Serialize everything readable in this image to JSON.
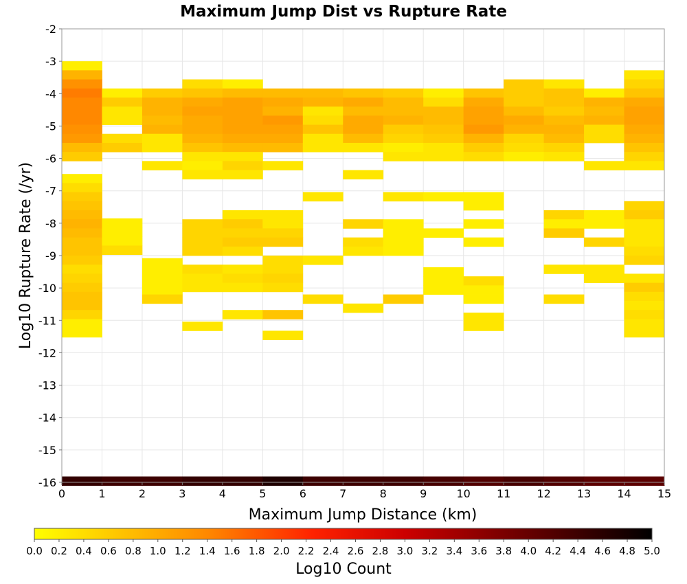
{
  "chart_data": {
    "type": "heatmap",
    "title": "Maximum Jump Dist vs Rupture Rate",
    "xlabel": "Maximum Jump Distance (km)",
    "ylabel": "Log10 Rupture Rate (/yr)",
    "xlim": [
      0,
      15
    ],
    "ylim": [
      -16,
      -2
    ],
    "x_ticks": [
      "0",
      "1",
      "2",
      "3",
      "4",
      "5",
      "6",
      "7",
      "8",
      "9",
      "10",
      "11",
      "12",
      "13",
      "14",
      "15"
    ],
    "y_ticks": [
      "-2",
      "-3",
      "-4",
      "-5",
      "-6",
      "-7",
      "-8",
      "-9",
      "-10",
      "-11",
      "-12",
      "-13",
      "-14",
      "-15",
      "-16"
    ],
    "grid": true,
    "cell_width_km": 1,
    "cell_height_log": 0.28,
    "colorbar": {
      "label": "Log10 Count",
      "min": 0.0,
      "max": 5.0,
      "ticks": [
        "0.0",
        "0.2",
        "0.4",
        "0.6",
        "0.8",
        "1.0",
        "1.2",
        "1.4",
        "1.6",
        "1.8",
        "2.0",
        "2.2",
        "2.4",
        "2.6",
        "2.8",
        "3.0",
        "3.2",
        "3.4",
        "3.6",
        "3.8",
        "4.0",
        "4.2",
        "4.4",
        "4.6",
        "4.8",
        "5.0"
      ],
      "colors": [
        "#ffff00",
        "#ff9900",
        "#ff2200",
        "#cc0000",
        "#660000",
        "#000000"
      ]
    },
    "cells": [
      [
        0,
        -3.14,
        0.2
      ],
      [
        0,
        -3.42,
        0.9
      ],
      [
        0,
        -3.7,
        1.3
      ],
      [
        0,
        -3.98,
        1.5
      ],
      [
        0,
        -4.26,
        1.4
      ],
      [
        0,
        -4.54,
        1.4
      ],
      [
        0,
        -4.82,
        1.4
      ],
      [
        0,
        -5.1,
        1.3
      ],
      [
        0,
        -5.38,
        1.2
      ],
      [
        0,
        -5.66,
        0.8
      ],
      [
        0,
        -5.94,
        0.6
      ],
      [
        0,
        -6.62,
        0.2
      ],
      [
        0,
        -6.9,
        0.4
      ],
      [
        0,
        -7.18,
        0.6
      ],
      [
        0,
        -7.46,
        0.7
      ],
      [
        0,
        -7.74,
        0.8
      ],
      [
        0,
        -8.02,
        0.9
      ],
      [
        0,
        -8.3,
        0.8
      ],
      [
        0,
        -8.58,
        0.7
      ],
      [
        0,
        -8.86,
        0.7
      ],
      [
        0,
        -9.14,
        0.6
      ],
      [
        0,
        -9.42,
        0.4
      ],
      [
        0,
        -9.7,
        0.5
      ],
      [
        0,
        -9.98,
        0.6
      ],
      [
        0,
        -10.26,
        0.7
      ],
      [
        0,
        -10.54,
        0.7
      ],
      [
        0,
        -10.82,
        0.5
      ],
      [
        0,
        -11.1,
        0.2
      ],
      [
        0,
        -11.38,
        0.2
      ],
      [
        1,
        -3.98,
        0.2
      ],
      [
        1,
        -4.26,
        0.6
      ],
      [
        1,
        -4.54,
        0.3
      ],
      [
        1,
        -4.82,
        0.3
      ],
      [
        1,
        -5.38,
        0.4
      ],
      [
        1,
        -5.66,
        0.6
      ],
      [
        1,
        -7.99,
        0.2
      ],
      [
        1,
        -8.27,
        0.2
      ],
      [
        1,
        -8.55,
        0.2
      ],
      [
        1,
        -8.83,
        0.4
      ],
      [
        2,
        -3.98,
        0.6
      ],
      [
        2,
        -4.26,
        0.9
      ],
      [
        2,
        -4.54,
        0.9
      ],
      [
        2,
        -4.82,
        0.8
      ],
      [
        2,
        -5.1,
        0.9
      ],
      [
        2,
        -5.38,
        0.3
      ],
      [
        2,
        -5.66,
        0.3
      ],
      [
        2,
        -6.22,
        0.3
      ],
      [
        2,
        -9.22,
        0.2
      ],
      [
        2,
        -9.5,
        0.2
      ],
      [
        2,
        -9.78,
        0.2
      ],
      [
        2,
        -10.06,
        0.2
      ],
      [
        2,
        -10.34,
        0.5
      ],
      [
        3,
        -3.7,
        0.4
      ],
      [
        3,
        -3.98,
        0.7
      ],
      [
        3,
        -4.26,
        1.0
      ],
      [
        3,
        -4.54,
        1.1
      ],
      [
        3,
        -4.82,
        1.0
      ],
      [
        3,
        -5.1,
        1.0
      ],
      [
        3,
        -5.38,
        0.9
      ],
      [
        3,
        -5.66,
        0.7
      ],
      [
        3,
        -5.94,
        0.3
      ],
      [
        3,
        -6.22,
        0.2
      ],
      [
        3,
        -6.5,
        0.3
      ],
      [
        3,
        -8.02,
        0.5
      ],
      [
        3,
        -8.3,
        0.5
      ],
      [
        3,
        -8.58,
        0.5
      ],
      [
        3,
        -8.86,
        0.5
      ],
      [
        3,
        -9.42,
        0.4
      ],
      [
        3,
        -9.7,
        0.3
      ],
      [
        3,
        -9.98,
        0.3
      ],
      [
        3,
        -11.18,
        0.3
      ],
      [
        4,
        -3.7,
        0.2
      ],
      [
        4,
        -3.98,
        0.8
      ],
      [
        4,
        -4.26,
        1.1
      ],
      [
        4,
        -4.54,
        1.1
      ],
      [
        4,
        -4.82,
        1.1
      ],
      [
        4,
        -5.1,
        1.1
      ],
      [
        4,
        -5.38,
        1.0
      ],
      [
        4,
        -5.66,
        0.8
      ],
      [
        4,
        -5.94,
        0.3
      ],
      [
        4,
        -6.22,
        0.5
      ],
      [
        4,
        -6.5,
        0.3
      ],
      [
        4,
        -7.74,
        0.3
      ],
      [
        4,
        -8.02,
        0.6
      ],
      [
        4,
        -8.3,
        0.5
      ],
      [
        4,
        -8.58,
        0.6
      ],
      [
        4,
        -8.86,
        0.4
      ],
      [
        4,
        -9.42,
        0.3
      ],
      [
        4,
        -9.7,
        0.4
      ],
      [
        4,
        -9.98,
        0.3
      ],
      [
        4,
        -10.82,
        0.3
      ],
      [
        5,
        -3.98,
        0.8
      ],
      [
        5,
        -4.26,
        1.0
      ],
      [
        5,
        -4.54,
        0.9
      ],
      [
        5,
        -4.82,
        1.2
      ],
      [
        5,
        -5.1,
        1.1
      ],
      [
        5,
        -5.38,
        1.0
      ],
      [
        5,
        -5.66,
        0.8
      ],
      [
        5,
        -6.22,
        0.3
      ],
      [
        5,
        -7.74,
        0.3
      ],
      [
        5,
        -8.02,
        0.3
      ],
      [
        5,
        -8.3,
        0.5
      ],
      [
        5,
        -8.58,
        0.6
      ],
      [
        5,
        -9.14,
        0.4
      ],
      [
        5,
        -9.42,
        0.4
      ],
      [
        5,
        -9.7,
        0.5
      ],
      [
        5,
        -9.98,
        0.4
      ],
      [
        5,
        -10.82,
        0.7
      ],
      [
        5,
        -11.46,
        0.3
      ],
      [
        6,
        -3.98,
        0.8
      ],
      [
        6,
        -4.26,
        0.9
      ],
      [
        6,
        -4.54,
        0.3
      ],
      [
        6,
        -4.82,
        0.4
      ],
      [
        6,
        -5.1,
        0.7
      ],
      [
        6,
        -5.38,
        0.3
      ],
      [
        6,
        -5.66,
        0.3
      ],
      [
        6,
        -7.18,
        0.3
      ],
      [
        6,
        -9.14,
        0.3
      ],
      [
        6,
        -10.34,
        0.4
      ],
      [
        7,
        -3.98,
        0.7
      ],
      [
        7,
        -4.26,
        1.0
      ],
      [
        7,
        -4.54,
        0.8
      ],
      [
        7,
        -4.82,
        1.0
      ],
      [
        7,
        -5.1,
        1.0
      ],
      [
        7,
        -5.38,
        0.8
      ],
      [
        7,
        -5.66,
        0.3
      ],
      [
        7,
        -6.5,
        0.3
      ],
      [
        7,
        -8.02,
        0.5
      ],
      [
        7,
        -8.58,
        0.4
      ],
      [
        7,
        -8.86,
        0.3
      ],
      [
        7,
        -10.62,
        0.3
      ],
      [
        8,
        -3.98,
        0.6
      ],
      [
        8,
        -4.26,
        0.8
      ],
      [
        8,
        -4.54,
        0.8
      ],
      [
        8,
        -4.82,
        0.9
      ],
      [
        8,
        -5.1,
        0.6
      ],
      [
        8,
        -5.38,
        0.5
      ],
      [
        8,
        -5.66,
        0.2
      ],
      [
        8,
        -5.94,
        0.3
      ],
      [
        8,
        -7.18,
        0.3
      ],
      [
        8,
        -8.02,
        0.2
      ],
      [
        8,
        -8.3,
        0.2
      ],
      [
        8,
        -8.58,
        0.2
      ],
      [
        8,
        -8.86,
        0.2
      ],
      [
        8,
        -10.34,
        0.6
      ],
      [
        9,
        -3.98,
        0.2
      ],
      [
        9,
        -4.26,
        0.4
      ],
      [
        9,
        -4.54,
        0.8
      ],
      [
        9,
        -4.82,
        0.8
      ],
      [
        9,
        -5.1,
        0.7
      ],
      [
        9,
        -5.38,
        0.6
      ],
      [
        9,
        -5.66,
        0.3
      ],
      [
        9,
        -5.94,
        0.3
      ],
      [
        9,
        -7.18,
        0.2
      ],
      [
        9,
        -8.3,
        0.2
      ],
      [
        9,
        -9.5,
        0.2
      ],
      [
        9,
        -9.78,
        0.2
      ],
      [
        9,
        -10.06,
        0.2
      ],
      [
        10,
        -3.98,
        0.7
      ],
      [
        10,
        -4.26,
        1.0
      ],
      [
        10,
        -4.54,
        1.1
      ],
      [
        10,
        -4.82,
        1.1
      ],
      [
        10,
        -5.1,
        1.2
      ],
      [
        10,
        -5.38,
        0.9
      ],
      [
        10,
        -5.66,
        0.6
      ],
      [
        10,
        -5.94,
        0.4
      ],
      [
        10,
        -7.18,
        0.2
      ],
      [
        10,
        -7.46,
        0.2
      ],
      [
        10,
        -8.02,
        0.2
      ],
      [
        10,
        -8.58,
        0.2
      ],
      [
        10,
        -9.78,
        0.4
      ],
      [
        10,
        -10.06,
        0.2
      ],
      [
        10,
        -10.34,
        0.2
      ],
      [
        10,
        -10.9,
        0.3
      ],
      [
        10,
        -11.18,
        0.3
      ],
      [
        11,
        -3.7,
        0.6
      ],
      [
        11,
        -3.98,
        0.6
      ],
      [
        11,
        -4.26,
        0.6
      ],
      [
        11,
        -4.54,
        0.8
      ],
      [
        11,
        -4.82,
        1.0
      ],
      [
        11,
        -5.1,
        0.9
      ],
      [
        11,
        -5.38,
        0.5
      ],
      [
        11,
        -5.66,
        0.4
      ],
      [
        11,
        -5.94,
        0.2
      ],
      [
        12,
        -3.7,
        0.3
      ],
      [
        12,
        -3.98,
        0.7
      ],
      [
        12,
        -4.26,
        0.7
      ],
      [
        12,
        -4.54,
        0.6
      ],
      [
        12,
        -4.82,
        0.8
      ],
      [
        12,
        -5.1,
        0.9
      ],
      [
        12,
        -5.38,
        0.8
      ],
      [
        12,
        -5.66,
        0.5
      ],
      [
        12,
        -5.94,
        0.3
      ],
      [
        12,
        -7.74,
        0.5
      ],
      [
        12,
        -8.02,
        0.2
      ],
      [
        12,
        -8.3,
        0.6
      ],
      [
        12,
        -9.42,
        0.3
      ],
      [
        12,
        -10.34,
        0.4
      ],
      [
        13,
        -3.98,
        0.2
      ],
      [
        13,
        -4.26,
        0.9
      ],
      [
        13,
        -4.54,
        0.8
      ],
      [
        13,
        -4.82,
        0.9
      ],
      [
        13,
        -5.1,
        0.4
      ],
      [
        13,
        -5.38,
        0.4
      ],
      [
        13,
        -6.22,
        0.3
      ],
      [
        13,
        -7.74,
        0.2
      ],
      [
        13,
        -8.02,
        0.2
      ],
      [
        13,
        -8.58,
        0.5
      ],
      [
        13,
        -9.42,
        0.3
      ],
      [
        13,
        -9.7,
        0.3
      ],
      [
        14,
        -3.42,
        0.3
      ],
      [
        14,
        -3.7,
        0.5
      ],
      [
        14,
        -3.98,
        0.7
      ],
      [
        14,
        -4.26,
        1.0
      ],
      [
        14,
        -4.54,
        1.1
      ],
      [
        14,
        -4.82,
        1.1
      ],
      [
        14,
        -5.1,
        1.0
      ],
      [
        14,
        -5.38,
        0.9
      ],
      [
        14,
        -5.66,
        0.7
      ],
      [
        14,
        -5.94,
        0.5
      ],
      [
        14,
        -6.22,
        0.3
      ],
      [
        14,
        -7.46,
        0.5
      ],
      [
        14,
        -7.74,
        0.6
      ],
      [
        14,
        -8.02,
        0.3
      ],
      [
        14,
        -8.3,
        0.3
      ],
      [
        14,
        -8.58,
        0.3
      ],
      [
        14,
        -8.86,
        0.4
      ],
      [
        14,
        -9.14,
        0.5
      ],
      [
        14,
        -9.7,
        0.3
      ],
      [
        14,
        -9.98,
        0.6
      ],
      [
        14,
        -10.26,
        0.4
      ],
      [
        14,
        -10.54,
        0.3
      ],
      [
        14,
        -10.82,
        0.4
      ],
      [
        14,
        -11.1,
        0.3
      ],
      [
        14,
        -11.38,
        0.3
      ],
      [
        0,
        -15.96,
        4.5
      ],
      [
        1,
        -15.96,
        4.4
      ],
      [
        2,
        -15.96,
        4.4
      ],
      [
        3,
        -15.96,
        4.5
      ],
      [
        4,
        -15.96,
        4.5
      ],
      [
        5,
        -15.96,
        4.7
      ],
      [
        6,
        -15.96,
        4.4
      ],
      [
        7,
        -15.96,
        4.4
      ],
      [
        8,
        -15.96,
        4.4
      ],
      [
        9,
        -15.96,
        4.3
      ],
      [
        10,
        -15.96,
        4.2
      ],
      [
        11,
        -15.96,
        4.3
      ],
      [
        12,
        -15.96,
        4.2
      ],
      [
        13,
        -15.96,
        4.1
      ],
      [
        14,
        -15.96,
        4.1
      ]
    ]
  }
}
